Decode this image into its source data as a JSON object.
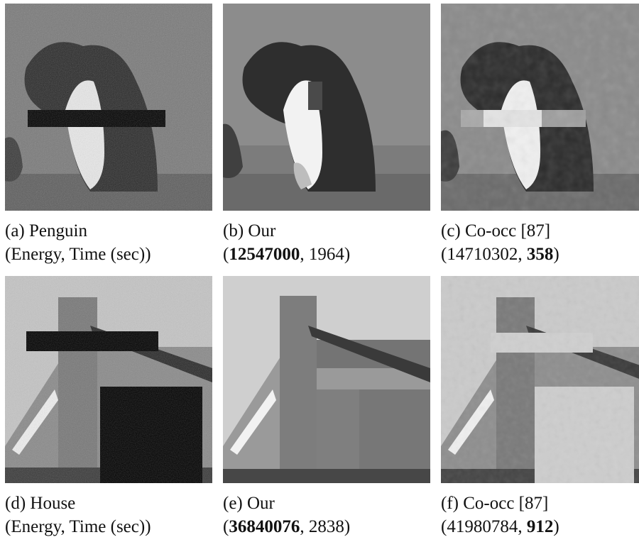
{
  "figure": {
    "rows": [
      {
        "panels": [
          {
            "id": "a",
            "caption_line1": "(a) Penguin",
            "caption_line2": "(Energy, Time (sec))",
            "image_desc": "noisy penguin image with black occlusion bar"
          },
          {
            "id": "b",
            "caption_line1": "(b) Our",
            "energy": "12547000",
            "time": "1964",
            "bold": "energy",
            "image_desc": "segmented penguin result"
          },
          {
            "id": "c",
            "caption_line1": "(c) Co-occ [87]",
            "energy": "14710302",
            "time": "358",
            "bold": "time",
            "image_desc": "co-occurrence penguin result"
          }
        ]
      },
      {
        "panels": [
          {
            "id": "d",
            "caption_line1": "(d) House",
            "caption_line2": "(Energy, Time (sec))",
            "image_desc": "noisy house image with black occlusion blocks"
          },
          {
            "id": "e",
            "caption_line1": "(e) Our",
            "energy": "36840076",
            "time": "2838",
            "bold": "energy",
            "image_desc": "segmented house result"
          },
          {
            "id": "f",
            "caption_line1": "(f) Co-occ [87]",
            "energy": "41980784",
            "time": "912",
            "bold": "time",
            "image_desc": "co-occurrence house result"
          }
        ]
      }
    ]
  }
}
